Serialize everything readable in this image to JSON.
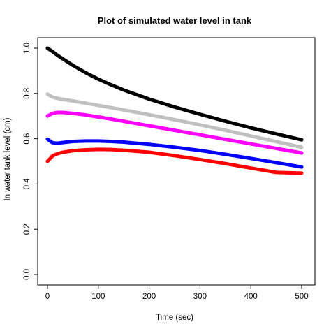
{
  "chart_data": {
    "type": "line",
    "title": "Plot of simulated water level in tank",
    "xlabel": "Time (sec)",
    "ylabel": "In water tank level (cm)",
    "xlim": [
      0,
      500
    ],
    "ylim": [
      0,
      1
    ],
    "xticks": [
      0,
      100,
      200,
      300,
      400,
      500
    ],
    "yticks": [
      0.0,
      0.2,
      0.4,
      0.6,
      0.8,
      1.0
    ],
    "ytick_labels": [
      "0.0",
      "0.2",
      "0.4",
      "0.6",
      "0.8",
      "1.0"
    ],
    "grid": false,
    "legend": "none",
    "x": [
      0,
      10,
      20,
      30,
      50,
      75,
      100,
      125,
      150,
      200,
      250,
      300,
      350,
      400,
      450,
      500
    ],
    "series": [
      {
        "color": "#000000",
        "values": [
          1.0,
          0.985,
          0.968,
          0.953,
          0.924,
          0.892,
          0.863,
          0.838,
          0.815,
          0.775,
          0.74,
          0.708,
          0.677,
          0.648,
          0.621,
          0.595
        ]
      },
      {
        "color": "#c0c0c0",
        "values": [
          0.797,
          0.784,
          0.778,
          0.774,
          0.767,
          0.757,
          0.747,
          0.737,
          0.727,
          0.706,
          0.684,
          0.661,
          0.637,
          0.612,
          0.587,
          0.562
        ]
      },
      {
        "color": "#ff00ff",
        "values": [
          0.7,
          0.712,
          0.716,
          0.716,
          0.712,
          0.705,
          0.696,
          0.687,
          0.677,
          0.657,
          0.637,
          0.617,
          0.597,
          0.577,
          0.557,
          0.537
        ]
      },
      {
        "color": "#0000ff",
        "values": [
          0.598,
          0.582,
          0.58,
          0.583,
          0.588,
          0.59,
          0.59,
          0.588,
          0.585,
          0.575,
          0.562,
          0.548,
          0.531,
          0.513,
          0.494,
          0.475
        ]
      },
      {
        "color": "#ff0000",
        "values": [
          0.5,
          0.524,
          0.534,
          0.54,
          0.547,
          0.551,
          0.553,
          0.552,
          0.549,
          0.54,
          0.525,
          0.508,
          0.49,
          0.47,
          0.451,
          0.448
        ]
      }
    ]
  }
}
